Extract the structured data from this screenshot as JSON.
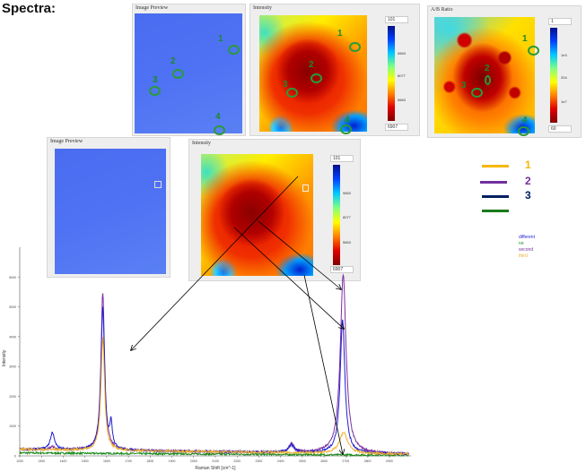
{
  "title": "Spectra:",
  "top_panels": {
    "preview_title": "Image Preview",
    "intensity_title": "Intensity",
    "ratio_title": "A/B Ratio",
    "intensity_scale": [
      "101",
      "9863",
      "8077",
      "5863",
      "6907"
    ],
    "ratio_scale": [
      "1",
      "1e3",
      "204",
      "1e7",
      "60"
    ],
    "markers": [
      "1",
      "2",
      "3",
      "4"
    ]
  },
  "bottom_panels": {
    "preview_title": "Image Preview",
    "intensity_title": "Intensity",
    "intensity_scale": [
      "101",
      "9863",
      "8077",
      "5863",
      "6907"
    ]
  },
  "point_legend": [
    {
      "label": "1",
      "color": "#f5b800"
    },
    {
      "label": "2",
      "color": "#7030a0"
    },
    {
      "label": "3",
      "color": "#002060"
    },
    {
      "label": "",
      "color": "#1a7a1a"
    }
  ],
  "chart_data": {
    "type": "line",
    "xlabel": "Raman Shift [cm^-1]",
    "ylabel": "Intensity",
    "xlim": [
      1200,
      3000
    ],
    "ylim": [
      0,
      7000
    ],
    "xticks": [
      1200,
      1300,
      1400,
      1500,
      1600,
      1700,
      1800,
      1900,
      2000,
      2100,
      2200,
      2300,
      2400,
      2500,
      2600,
      2700,
      2800,
      2900
    ],
    "yticks": [
      0,
      1000,
      2000,
      3000,
      4000,
      5000,
      6000
    ],
    "grid": false,
    "legend_position": "top-right",
    "series": [
      {
        "name": "different",
        "color": "#1f1fd0",
        "peaks": [
          {
            "x": 1350,
            "y": 550
          },
          {
            "x": 1582,
            "y": 4800
          },
          {
            "x": 1620,
            "y": 800
          },
          {
            "x": 2450,
            "y": 250
          },
          {
            "x": 2685,
            "y": 4500
          }
        ]
      },
      {
        "name": "no",
        "color": "#1a8a1a",
        "peaks": []
      },
      {
        "name": "second",
        "color": "#7b2fa0",
        "peaks": [
          {
            "x": 1350,
            "y": 100
          },
          {
            "x": 1582,
            "y": 5300
          },
          {
            "x": 2450,
            "y": 300
          },
          {
            "x": 2688,
            "y": 6000
          }
        ]
      },
      {
        "name": "third",
        "color": "#f0b030",
        "peaks": [
          {
            "x": 1582,
            "y": 3800
          },
          {
            "x": 2690,
            "y": 700
          }
        ]
      }
    ]
  }
}
